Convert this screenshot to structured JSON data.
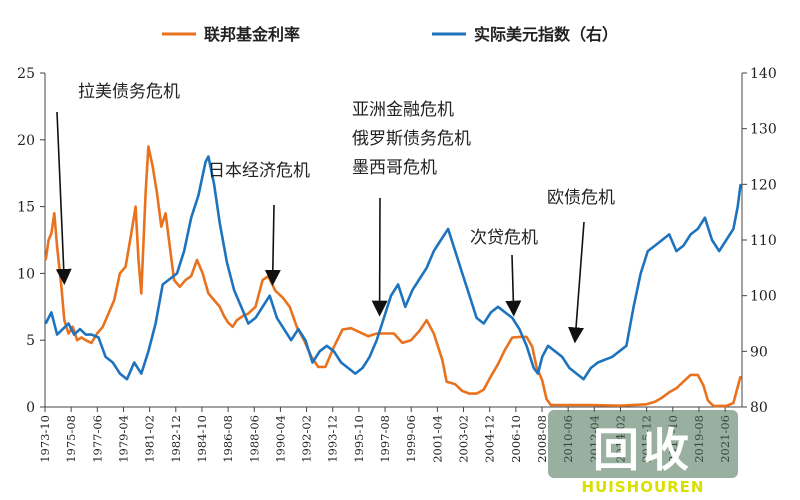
{
  "chart_data": {
    "type": "line",
    "title": "",
    "xlabel": "",
    "ylabel_left": "",
    "ylabel_right": "",
    "left_axis": {
      "min": 0,
      "max": 25,
      "ticks": [
        "0",
        "5",
        "10",
        "15",
        "20",
        "25"
      ]
    },
    "right_axis": {
      "min": 80,
      "max": 140,
      "ticks": [
        "80",
        "90",
        "100",
        "110",
        "120",
        "130",
        "140"
      ]
    },
    "x_range": [
      1973.75,
      2022.6
    ],
    "x_tick_labels": [
      "1973-10",
      "1975-08",
      "1977-06",
      "1979-04",
      "1981-02",
      "1982-12",
      "1984-10",
      "1986-08",
      "1988-06",
      "1990-04",
      "1992-02",
      "1993-12",
      "1995-10",
      "1997-08",
      "1999-06",
      "2001-04",
      "2003-02",
      "2004-12",
      "2006-10",
      "2008-08",
      "2010-06",
      "2012-04",
      "2014-02",
      "2015-12",
      "2017-10",
      "2019-08",
      "2021-06"
    ],
    "legend_position": "top-center",
    "series": [
      {
        "name": "联邦基金利率",
        "axis": "left",
        "color": "#E8721E",
        "x": [
          1973.8,
          1974.0,
          1974.2,
          1974.4,
          1974.6,
          1974.9,
          1975.1,
          1975.4,
          1975.7,
          1976.0,
          1976.3,
          1976.6,
          1977.0,
          1977.4,
          1977.8,
          1978.2,
          1978.6,
          1979.0,
          1979.4,
          1979.8,
          1980.1,
          1980.3,
          1980.5,
          1980.8,
          1981.0,
          1981.3,
          1981.6,
          1981.9,
          1982.2,
          1982.5,
          1982.8,
          1983.2,
          1983.6,
          1984.0,
          1984.4,
          1984.8,
          1985.2,
          1985.6,
          1986.0,
          1986.3,
          1986.6,
          1986.9,
          1987.2,
          1987.6,
          1988.0,
          1988.5,
          1989.0,
          1989.4,
          1989.9,
          1990.4,
          1990.9,
          1991.4,
          1991.9,
          1992.4,
          1992.9,
          1993.4,
          1994.0,
          1994.6,
          1995.2,
          1995.8,
          1996.4,
          1997.0,
          1997.6,
          1998.2,
          1998.8,
          1999.4,
          2000.0,
          2000.5,
          2001.0,
          2001.3,
          2001.6,
          2001.9,
          2002.5,
          2003.0,
          2003.5,
          2004.0,
          2004.5,
          2005.0,
          2005.5,
          2006.0,
          2006.5,
          2007.0,
          2007.5,
          2007.9,
          2008.2,
          2008.6,
          2008.9,
          2009.2,
          2010.0,
          2012.0,
          2014.0,
          2015.9,
          2016.5,
          2017.0,
          2017.5,
          2018.0,
          2018.5,
          2019.0,
          2019.5,
          2019.9,
          2020.2,
          2020.6,
          2021.5,
          2022.0,
          2022.3,
          2022.5
        ],
        "values": [
          11.0,
          12.5,
          13.0,
          14.5,
          12.0,
          9.0,
          6.5,
          5.5,
          6.0,
          5.0,
          5.2,
          5.0,
          4.8,
          5.5,
          6.0,
          7.0,
          8.0,
          10.0,
          10.5,
          13.0,
          15.0,
          11.0,
          8.5,
          16.0,
          19.5,
          18.0,
          16.0,
          13.5,
          14.5,
          12.0,
          9.5,
          9.0,
          9.5,
          9.8,
          11.0,
          10.0,
          8.5,
          8.0,
          7.5,
          6.8,
          6.3,
          6.0,
          6.5,
          6.8,
          7.0,
          7.5,
          9.5,
          9.8,
          8.7,
          8.2,
          7.5,
          6.0,
          5.0,
          3.8,
          3.0,
          3.0,
          4.5,
          5.8,
          5.9,
          5.6,
          5.3,
          5.5,
          5.5,
          5.5,
          4.8,
          5.0,
          5.7,
          6.5,
          5.5,
          4.5,
          3.5,
          1.9,
          1.7,
          1.2,
          1.0,
          1.0,
          1.3,
          2.3,
          3.2,
          4.3,
          5.2,
          5.25,
          5.25,
          4.5,
          3.0,
          2.0,
          0.6,
          0.15,
          0.15,
          0.15,
          0.1,
          0.2,
          0.4,
          0.7,
          1.1,
          1.4,
          1.9,
          2.4,
          2.4,
          1.6,
          0.5,
          0.08,
          0.08,
          0.3,
          1.5,
          2.3
        ]
      },
      {
        "name": "实际美元指数（右）",
        "axis": "right",
        "color": "#1E73BE",
        "x": [
          1973.8,
          1974.2,
          1974.6,
          1975.0,
          1975.4,
          1975.8,
          1976.2,
          1976.6,
          1977.0,
          1977.5,
          1978.0,
          1978.5,
          1979.0,
          1979.5,
          1980.0,
          1980.5,
          1981.0,
          1981.5,
          1982.0,
          1982.5,
          1983.0,
          1983.5,
          1984.0,
          1984.5,
          1985.0,
          1985.2,
          1985.6,
          1986.0,
          1986.5,
          1987.0,
          1987.5,
          1988.0,
          1988.5,
          1989.0,
          1989.5,
          1990.0,
          1990.5,
          1991.0,
          1991.5,
          1992.0,
          1992.5,
          1993.0,
          1993.5,
          1994.0,
          1994.5,
          1995.0,
          1995.5,
          1996.0,
          1996.5,
          1997.0,
          1997.5,
          1998.0,
          1998.5,
          1999.0,
          1999.5,
          2000.0,
          2000.5,
          2001.0,
          2001.5,
          2002.0,
          2002.5,
          2003.0,
          2003.5,
          2004.0,
          2004.5,
          2005.0,
          2005.5,
          2006.0,
          2006.5,
          2007.0,
          2007.5,
          2008.0,
          2008.3,
          2008.6,
          2009.0,
          2009.5,
          2010.0,
          2010.5,
          2011.0,
          2011.5,
          2012.0,
          2012.5,
          2013.0,
          2013.5,
          2014.0,
          2014.5,
          2015.0,
          2015.5,
          2016.0,
          2016.5,
          2017.0,
          2017.5,
          2018.0,
          2018.5,
          2019.0,
          2019.5,
          2020.0,
          2020.5,
          2021.0,
          2021.5,
          2022.0,
          2022.3,
          2022.5
        ],
        "values": [
          95.0,
          97.0,
          93.0,
          94.0,
          95.0,
          93.0,
          94.0,
          93.0,
          93.0,
          92.5,
          89.0,
          88.0,
          86.0,
          85.0,
          88.0,
          86.0,
          90.0,
          95.0,
          102.0,
          103.0,
          104.0,
          108.0,
          114.0,
          118.0,
          124.0,
          125.0,
          120.0,
          113.0,
          106.0,
          101.0,
          98.0,
          95.0,
          96.0,
          98.0,
          100.0,
          96.0,
          94.0,
          92.0,
          94.0,
          92.0,
          88.0,
          90.0,
          91.0,
          90.0,
          88.0,
          87.0,
          86.0,
          87.0,
          89.0,
          92.0,
          96.0,
          100.0,
          102.0,
          98.0,
          101.0,
          103.0,
          105.0,
          108.0,
          110.0,
          112.0,
          108.0,
          104.0,
          100.0,
          96.0,
          95.0,
          97.0,
          98.0,
          97.0,
          96.0,
          94.0,
          91.0,
          87.0,
          86.0,
          89.0,
          91.0,
          90.0,
          89.0,
          87.0,
          86.0,
          85.0,
          87.0,
          88.0,
          88.5,
          89.0,
          90.0,
          91.0,
          98.0,
          104.0,
          108.0,
          109.0,
          110.0,
          111.0,
          108.0,
          109.0,
          111.0,
          112.0,
          114.0,
          110.0,
          108.0,
          110.0,
          112.0,
          116.0,
          120.0
        ]
      }
    ],
    "annotations": [
      {
        "text": "拉美债务危机",
        "target_x": 1975.1,
        "target_y": 102.5,
        "axis": "right"
      },
      {
        "text": "日本经济危机",
        "target_x": 1989.7,
        "target_y": 9.3,
        "axis": "left"
      },
      {
        "text": "亚洲金融危机",
        "target_x": 1997.2,
        "target_y": 7.0,
        "axis": "left"
      },
      {
        "text": "俄罗斯债务危机",
        "target_x": 1997.2,
        "target_y": 7.0,
        "axis": "left"
      },
      {
        "text": "墨西哥危机",
        "target_x": 1997.2,
        "target_y": 7.0,
        "axis": "left"
      },
      {
        "text": "次贷危机",
        "target_x": 2006.6,
        "target_y": 7.0,
        "axis": "left"
      },
      {
        "text": "欧债危机",
        "target_x": 2010.9,
        "target_y": 5.0,
        "axis": "left"
      }
    ]
  },
  "watermark": {
    "main": "回收",
    "sub": "HUISHOUREN"
  }
}
